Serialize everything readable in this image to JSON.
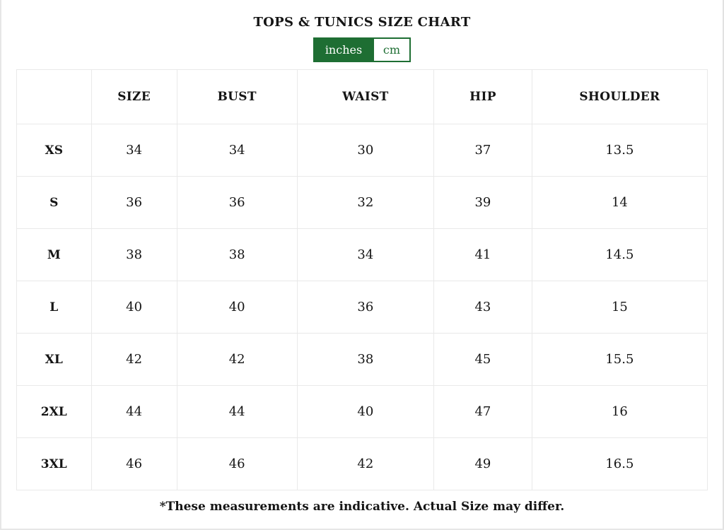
{
  "title": "TOPS & TUNICS SIZE CHART",
  "unit_toggle": {
    "options": [
      {
        "label": "inches",
        "selected": true
      },
      {
        "label": "cm",
        "selected": false
      }
    ]
  },
  "colors": {
    "accent_green": "#1e6e33",
    "selected_text": "#ffffff",
    "table_border": "#e9e9e9"
  },
  "chart_data": {
    "type": "table",
    "unit": "inches",
    "columns": [
      "",
      "SIZE",
      "BUST",
      "WAIST",
      "HIP",
      "SHOULDER"
    ],
    "rows": [
      {
        "label": "XS",
        "values": [
          "34",
          "34",
          "30",
          "37",
          "13.5"
        ]
      },
      {
        "label": "S",
        "values": [
          "36",
          "36",
          "32",
          "39",
          "14"
        ]
      },
      {
        "label": "M",
        "values": [
          "38",
          "38",
          "34",
          "41",
          "14.5"
        ]
      },
      {
        "label": "L",
        "values": [
          "40",
          "40",
          "36",
          "43",
          "15"
        ]
      },
      {
        "label": "XL",
        "values": [
          "42",
          "42",
          "38",
          "45",
          "15.5"
        ]
      },
      {
        "label": "2XL",
        "values": [
          "44",
          "44",
          "40",
          "47",
          "16"
        ]
      },
      {
        "label": "3XL",
        "values": [
          "46",
          "46",
          "42",
          "49",
          "16.5"
        ]
      }
    ]
  },
  "footnote": "*These measurements are indicative. Actual Size may differ."
}
